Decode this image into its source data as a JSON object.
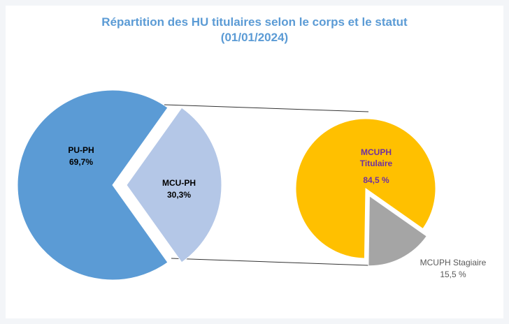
{
  "chart_data": [
    {
      "type": "pie",
      "title": "Répartition des HU titulaires selon le corps et le statut",
      "subtitle": "(01/01/2024)",
      "categories": [
        "PU-PH",
        "MCU-PH"
      ],
      "values": [
        69.7,
        30.3
      ],
      "value_labels": [
        "69,7%",
        "30,3%"
      ],
      "colors": [
        "#5b9bd5",
        "#b4c7e7"
      ]
    },
    {
      "type": "pie",
      "categories": [
        "MCUPH Titulaire",
        "MCUPH Stagiaire"
      ],
      "values": [
        84.5,
        15.5
      ],
      "value_labels": [
        "84,5 %",
        "15,5 %"
      ],
      "colors": [
        "#ffc000",
        "#a5a5a5"
      ]
    }
  ]
}
